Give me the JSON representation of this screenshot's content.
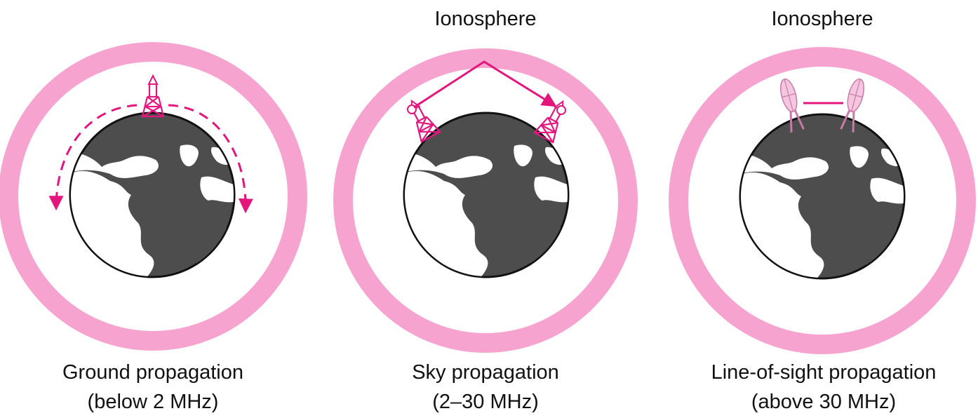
{
  "colors": {
    "ionosphere": "#f7a3cf",
    "signal": "#e5157e",
    "earth_land": "#ffffff",
    "earth_ocean": "#4d4d4d",
    "earth_outline": "#111111",
    "dish": "#f4c6e0"
  },
  "panels": [
    {
      "mode": "ground",
      "ionosphere_label": "",
      "title": "Ground propagation",
      "subtitle": "(below 2 MHz)"
    },
    {
      "mode": "sky",
      "ionosphere_label": "Ionosphere",
      "title": "Sky propagation",
      "subtitle": "(2–30 MHz)"
    },
    {
      "mode": "line-of-sight",
      "ionosphere_label": "Ionosphere",
      "title": "Line-of-sight propagation",
      "subtitle": "(above 30 MHz)"
    }
  ],
  "icons": [
    "antenna-tower-icon",
    "dish-antenna-icon",
    "signal-arrow-icon",
    "earth-globe-icon"
  ]
}
